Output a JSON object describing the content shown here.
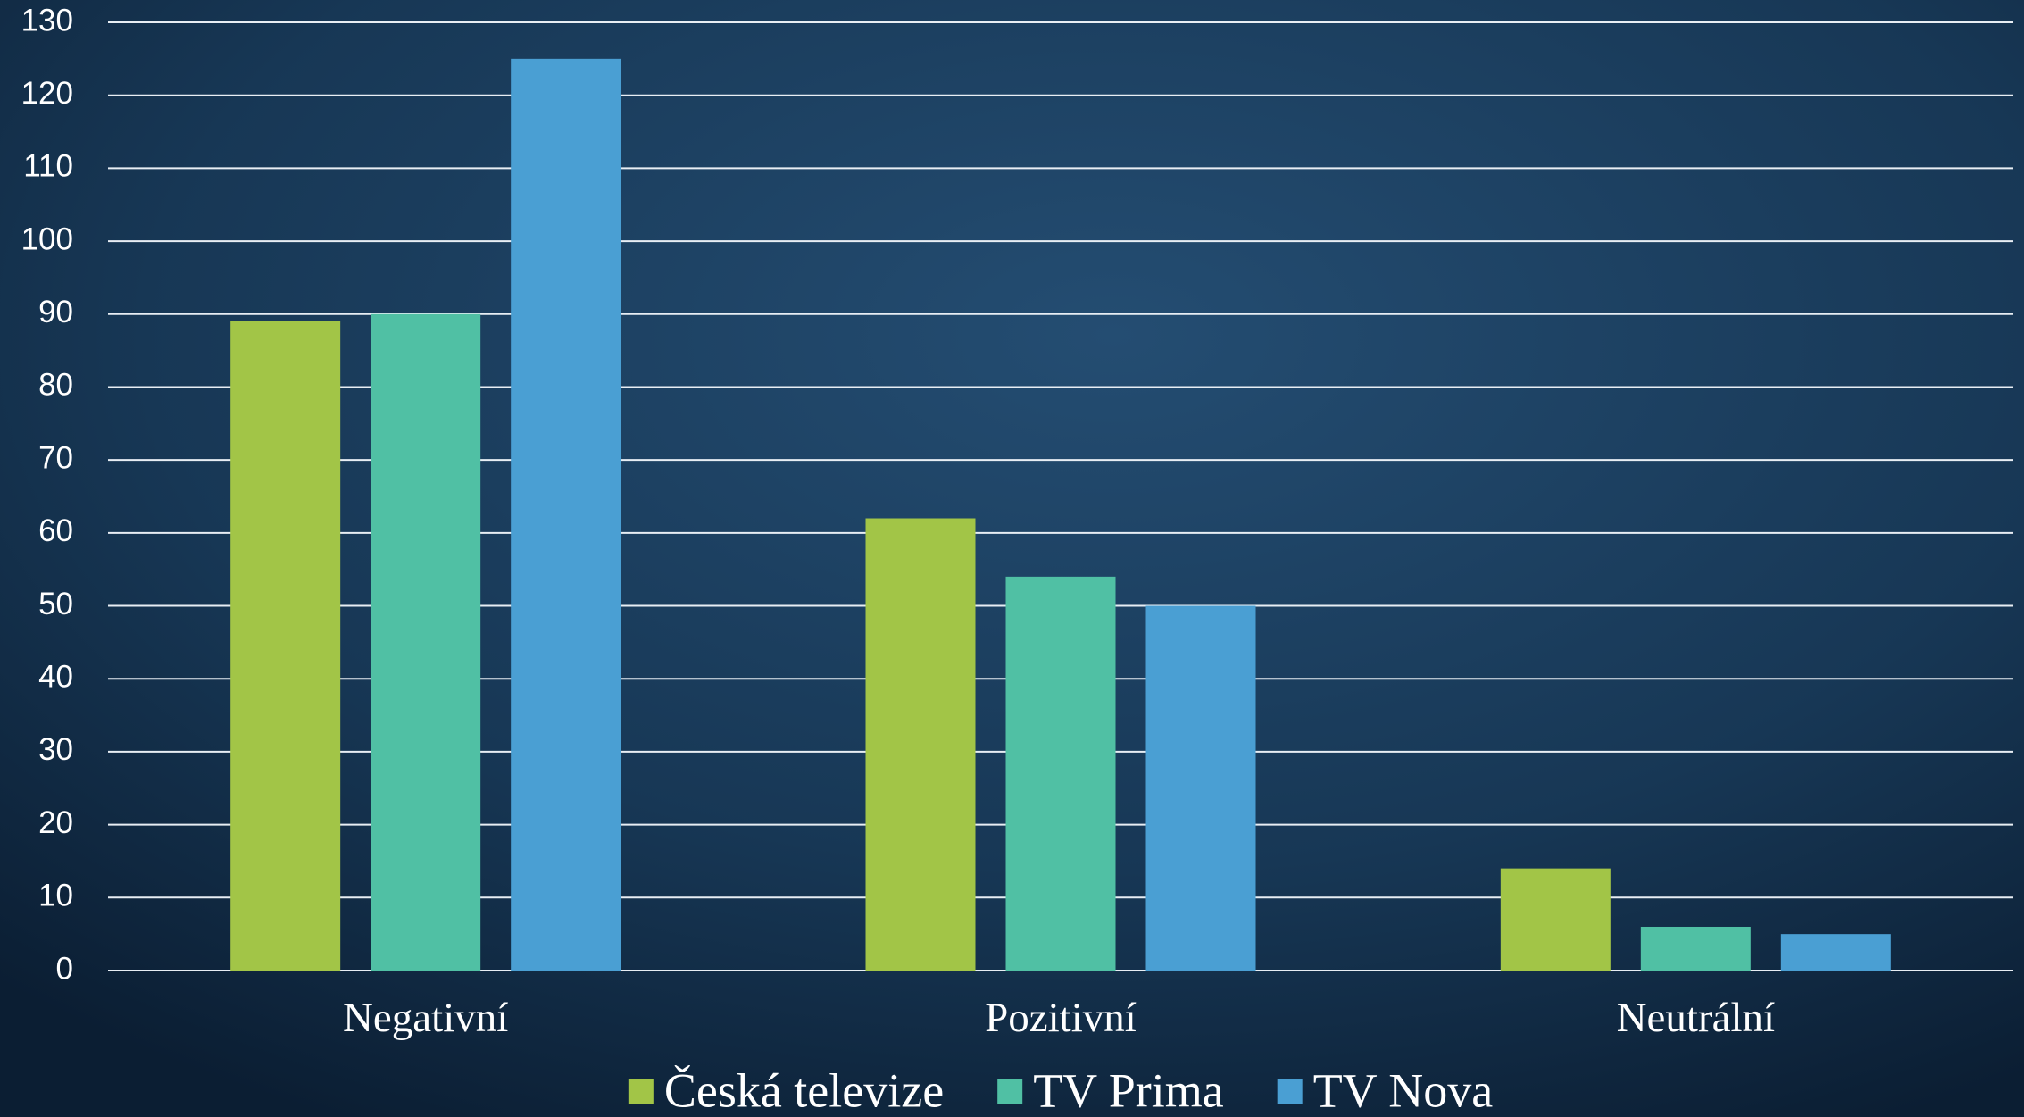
{
  "chart_data": {
    "type": "bar",
    "categories": [
      "Negativní",
      "Pozitivní",
      "Neutrální"
    ],
    "series": [
      {
        "name": "Česká televize",
        "color": "#a2c547",
        "values": [
          89,
          62,
          14
        ]
      },
      {
        "name": "TV Prima",
        "color": "#50c0a4",
        "values": [
          90,
          54,
          6
        ]
      },
      {
        "name": "TV Nova",
        "color": "#4a9fd3",
        "values": [
          125,
          50,
          5
        ]
      }
    ],
    "ylim": [
      0,
      130
    ],
    "yticks": [
      0,
      10,
      20,
      30,
      40,
      50,
      60,
      70,
      80,
      90,
      100,
      110,
      120,
      130
    ],
    "grid": true,
    "legend": "bottom"
  }
}
